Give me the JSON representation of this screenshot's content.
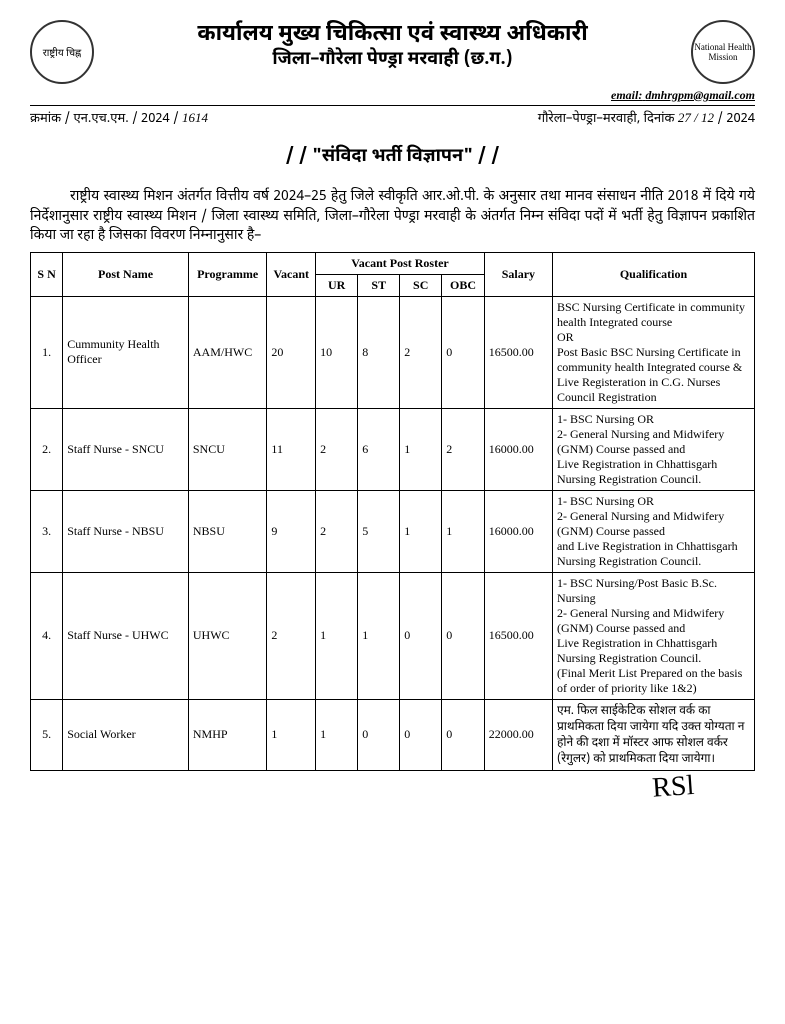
{
  "header": {
    "emblem_label": "राष्ट्रीय चिह्न",
    "title_main": "कार्यालय मुख्य चिकित्सा एवं स्वास्थ्य अधिकारी",
    "title_sub": "जिला–गौरेला पेण्ड्रा मरवाही (छ.ग.)",
    "nhm_label": "National Health Mission",
    "email_label": "email:",
    "email_value": "dmhrgpm@gmail.com"
  },
  "ref": {
    "left_pre": "क्रमांक / एन.एच.एम. / 2024 /",
    "left_hand": "1614",
    "right_pre": "गौरेला–पेण्ड्रा–मरवाही, दिनांक",
    "right_hand": "27 / 12",
    "right_post": "/ 2024"
  },
  "notice_title": "/ / \"संविदा भर्ती विज्ञापन\" / /",
  "intro": "राष्ट्रीय स्वास्थ्य मिशन अंतर्गत वित्तीय वर्ष 2024–25 हेतु जिले स्वीकृति आर.ओ.पी. के अनुसार तथा मानव संसाधन नीति 2018 में दिये गये निर्देशानुसार राष्ट्रीय स्वास्थ्य मिशन / जिला स्वास्थ्य समिति, जिला–गौरेला पेण्ड्रा मरवाही के अंतर्गत निम्न संविदा पदों में भर्ती हेतु विज्ञापन प्रकाशित किया जा रहा है जिसका विवरण निम्नानुसार है–",
  "table": {
    "headers": {
      "sn": "S N",
      "post": "Post Name",
      "programme": "Programme",
      "vacant": "Vacant",
      "roster": "Vacant Post Roster",
      "ur": "UR",
      "st": "ST",
      "sc": "SC",
      "obc": "OBC",
      "salary": "Salary",
      "qualification": "Qualification"
    },
    "rows": [
      {
        "sn": "1.",
        "post": "Cummunity Health Officer",
        "programme": "AAM/HWC",
        "vacant": "20",
        "ur": "10",
        "st": "8",
        "sc": "2",
        "obc": "0",
        "salary": "16500.00",
        "qualification": "BSC Nursing Certificate in community health Integrated course\nOR\nPost Basic BSC Nursing Certificate in community health Integrated course & Live Registeration in C.G. Nurses Council Registration"
      },
      {
        "sn": "2.",
        "post": "Staff Nurse - SNCU",
        "programme": "SNCU",
        "vacant": "11",
        "ur": "2",
        "st": "6",
        "sc": "1",
        "obc": "2",
        "salary": "16000.00",
        "qualification": "1- BSC Nursing OR\n2- General Nursing and Midwifery (GNM) Course passed and\nLive Registration in Chhattisgarh Nursing Registration Council."
      },
      {
        "sn": "3.",
        "post": "Staff Nurse - NBSU",
        "programme": "NBSU",
        "vacant": "9",
        "ur": "2",
        "st": "5",
        "sc": "1",
        "obc": "1",
        "salary": "16000.00",
        "qualification": "1- BSC Nursing OR\n2- General Nursing and Midwifery (GNM) Course passed\nand Live Registration in Chhattisgarh Nursing Registration Council."
      },
      {
        "sn": "4.",
        "post": "Staff Nurse - UHWC",
        "programme": "UHWC",
        "vacant": "2",
        "ur": "1",
        "st": "1",
        "sc": "0",
        "obc": "0",
        "salary": "16500.00",
        "qualification": "1- BSC Nursing/Post Basic B.Sc. Nursing\n2- General Nursing and Midwifery (GNM) Course passed and\nLive Registration in Chhattisgarh Nursing Registration Council.\n(Final Merit List Prepared on the basis of order of priority like 1&2)"
      },
      {
        "sn": "5.",
        "post": "Social Worker",
        "programme": "NMHP",
        "vacant": "1",
        "ur": "1",
        "st": "0",
        "sc": "0",
        "obc": "0",
        "salary": "22000.00",
        "qualification": "एम. फिल साईकेटिक सोशल वर्क का प्राथमिकता दिया जायेगा यदि उक्त योग्यता न होने की दशा में मॉस्टर आफ सोशल वर्कर (रेगुलर) को प्राथमिकता दिया जायेगा।"
      }
    ]
  },
  "signature": "RSl"
}
